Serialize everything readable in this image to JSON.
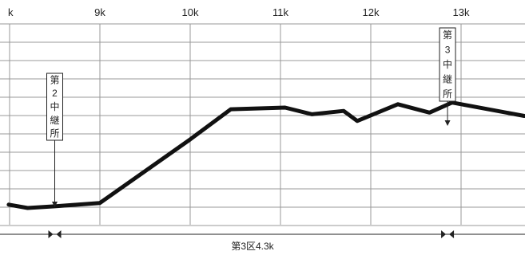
{
  "chart_data": {
    "type": "line",
    "title": "",
    "xlabel": "",
    "ylabel": "",
    "x_ticks": [
      {
        "x": 8,
        "label": "k"
      },
      {
        "x": 9,
        "label": "9k"
      },
      {
        "x": 10,
        "label": "10k"
      },
      {
        "x": 11,
        "label": "11k"
      },
      {
        "x": 12,
        "label": "12k"
      },
      {
        "x": 13,
        "label": "13k"
      }
    ],
    "xlim": [
      7.99,
      13.7
    ],
    "ylim": [
      0,
      12
    ],
    "grid": true,
    "series": [
      {
        "points": [
          {
            "x": 7.99,
            "y": 1.2
          },
          {
            "x": 8.2,
            "y": 1.0
          },
          {
            "x": 8.5,
            "y": 1.1
          },
          {
            "x": 9.0,
            "y": 1.3
          },
          {
            "x": 10.0,
            "y": 5.1
          },
          {
            "x": 10.45,
            "y": 6.9
          },
          {
            "x": 11.05,
            "y": 7.0
          },
          {
            "x": 11.35,
            "y": 6.6
          },
          {
            "x": 11.7,
            "y": 6.8
          },
          {
            "x": 11.85,
            "y": 6.2
          },
          {
            "x": 12.3,
            "y": 7.2
          },
          {
            "x": 12.65,
            "y": 6.7
          },
          {
            "x": 12.9,
            "y": 7.3
          },
          {
            "x": 13.7,
            "y": 6.5
          }
        ]
      }
    ],
    "annotations": [
      {
        "text": "第2中継所",
        "x": 8.5
      },
      {
        "text": "第3中継所",
        "x": 12.85
      }
    ],
    "section": {
      "label": "第3区4.3k",
      "start": 8.5,
      "end": 12.85
    }
  }
}
